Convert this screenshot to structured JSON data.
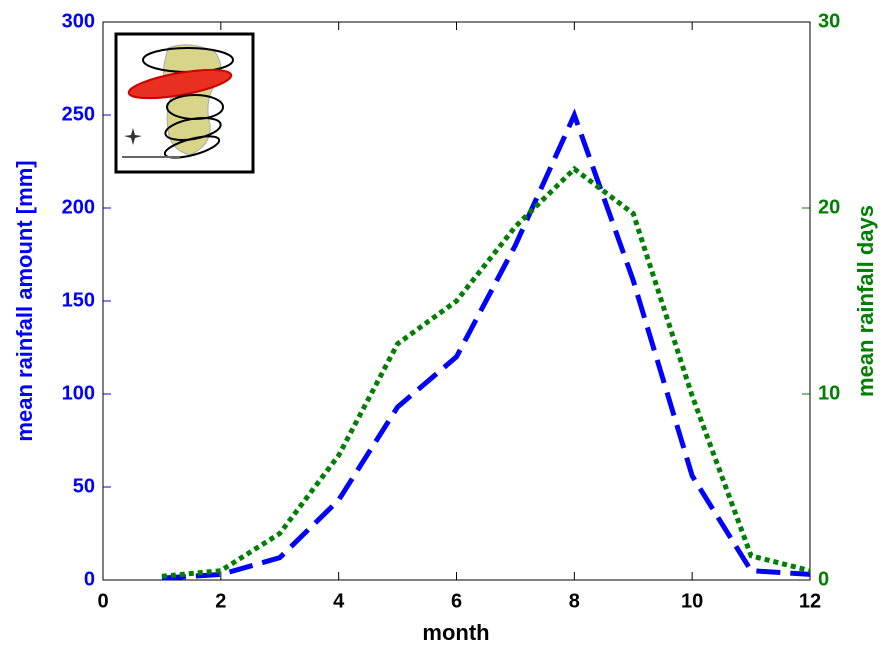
{
  "chart_data": {
    "type": "line",
    "xlabel": "month",
    "ylabel": "mean rainfall amount [mm]",
    "y2label": "mean rainfall days",
    "x": [
      1,
      2,
      3,
      4,
      5,
      6,
      7,
      8,
      9,
      10,
      11,
      12
    ],
    "series": [
      {
        "color": "#0000ff",
        "style": "dashed",
        "values": [
          1,
          3,
          12,
          43,
          93,
          120,
          180,
          250,
          161,
          56,
          5,
          3
        ]
      },
      {
        "color": "#007f00",
        "style": "dotted",
        "axis": "y2",
        "values": [
          0.2,
          0.5,
          2.5,
          6.7,
          12.7,
          15,
          19,
          22.1,
          19.7,
          9.9,
          1.3,
          0.5
        ]
      }
    ],
    "xlim": [
      0,
      12
    ],
    "xticks": [
      0,
      2,
      4,
      6,
      8,
      10,
      12
    ],
    "ylim": [
      0,
      300
    ],
    "yticks": [
      0,
      50,
      100,
      150,
      200,
      250,
      300
    ],
    "y2lim": [
      0,
      30
    ],
    "y2ticks": [
      0,
      10,
      20,
      30
    ]
  }
}
